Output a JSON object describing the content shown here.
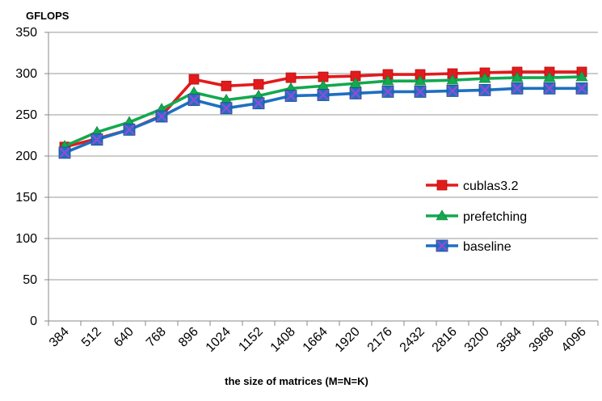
{
  "chart_data": {
    "type": "line",
    "ylabel": "GFLOPS",
    "xlabel": "the size of matrices (M=N=K)",
    "ylim": [
      0,
      350
    ],
    "yticks": [
      0,
      50,
      100,
      150,
      200,
      250,
      300,
      350
    ],
    "grid": "horizontal",
    "legend_position": "right",
    "categories": [
      "384",
      "512",
      "640",
      "768",
      "896",
      "1024",
      "1152",
      "1408",
      "1664",
      "1920",
      "2176",
      "2432",
      "2816",
      "3200",
      "3584",
      "3968",
      "4096"
    ],
    "series": [
      {
        "name": "cublas3.2",
        "color": "#e31a1c",
        "marker": "square",
        "values": [
          211,
          221,
          232,
          249,
          293,
          285,
          287,
          295,
          296,
          297,
          299,
          299,
          300,
          301,
          302,
          302,
          302
        ]
      },
      {
        "name": "prefetching",
        "color": "#12a94f",
        "marker": "triangle",
        "values": [
          212,
          229,
          241,
          257,
          277,
          268,
          273,
          282,
          285,
          288,
          291,
          291,
          292,
          294,
          295,
          295,
          296
        ]
      },
      {
        "name": "baseline",
        "color": "#1f6fc1",
        "marker": "x-square",
        "values": [
          204,
          220,
          232,
          248,
          268,
          258,
          264,
          273,
          274,
          276,
          278,
          278,
          279,
          280,
          282,
          282,
          282
        ]
      }
    ]
  }
}
